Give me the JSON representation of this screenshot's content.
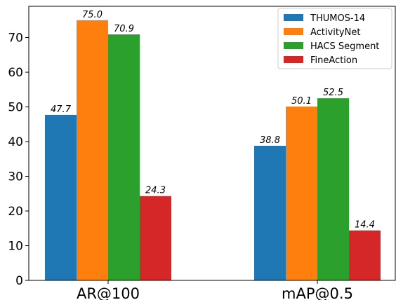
{
  "chart_data": {
    "type": "bar",
    "categories": [
      "AR@100",
      "mAP@0.5"
    ],
    "series": [
      {
        "name": "THUMOS-14",
        "values": [
          47.7,
          38.8
        ],
        "color": "#1f77b4"
      },
      {
        "name": "ActivityNet",
        "values": [
          75.0,
          50.1
        ],
        "color": "#ff7f0e"
      },
      {
        "name": "HACS Segment",
        "values": [
          70.9,
          52.5
        ],
        "color": "#2ca02c"
      },
      {
        "name": "FineAction",
        "values": [
          24.3,
          14.4
        ],
        "color": "#d62728"
      }
    ],
    "data_labels": [
      [
        "47.7",
        "38.8"
      ],
      [
        "75.0",
        "50.1"
      ],
      [
        "70.9",
        "52.5"
      ],
      [
        "24.3",
        "14.4"
      ]
    ],
    "ylim": [
      0,
      79
    ],
    "yticks": [
      "0",
      "10",
      "20",
      "30",
      "40",
      "50",
      "60",
      "70"
    ],
    "xlabel": "",
    "ylabel": "",
    "title": "",
    "legend_position": "top-right",
    "grid": false
  }
}
